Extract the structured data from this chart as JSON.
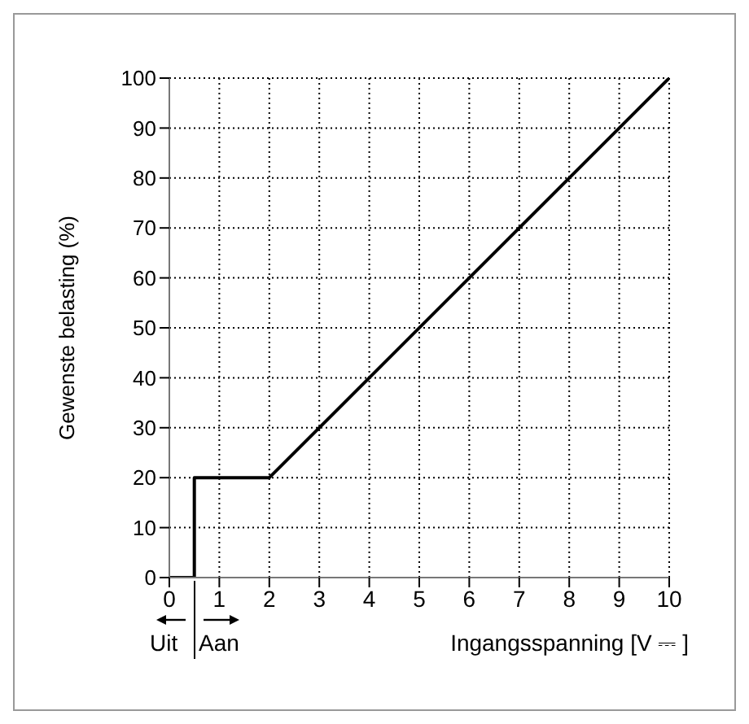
{
  "chart_data": {
    "type": "line",
    "xlabel": "Ingangsspanning  [V ⎓ ]",
    "ylabel": "Gewenste belasting (%)",
    "series": [
      {
        "x": [
          0,
          0.5,
          0.5,
          2,
          10
        ],
        "values": [
          0,
          0,
          20,
          20,
          100
        ],
        "color": "#000000"
      }
    ],
    "xlim": [
      0,
      10
    ],
    "xticks": [
      0,
      1,
      2,
      3,
      4,
      5,
      6,
      7,
      8,
      9,
      10
    ],
    "ylim": [
      0,
      100
    ],
    "yticks": [
      0,
      10,
      20,
      30,
      40,
      50,
      60,
      70,
      80,
      90,
      100
    ],
    "grid": true,
    "marker": "none",
    "line_style": "solid",
    "annotations": [
      "Uit",
      "Aan"
    ]
  }
}
